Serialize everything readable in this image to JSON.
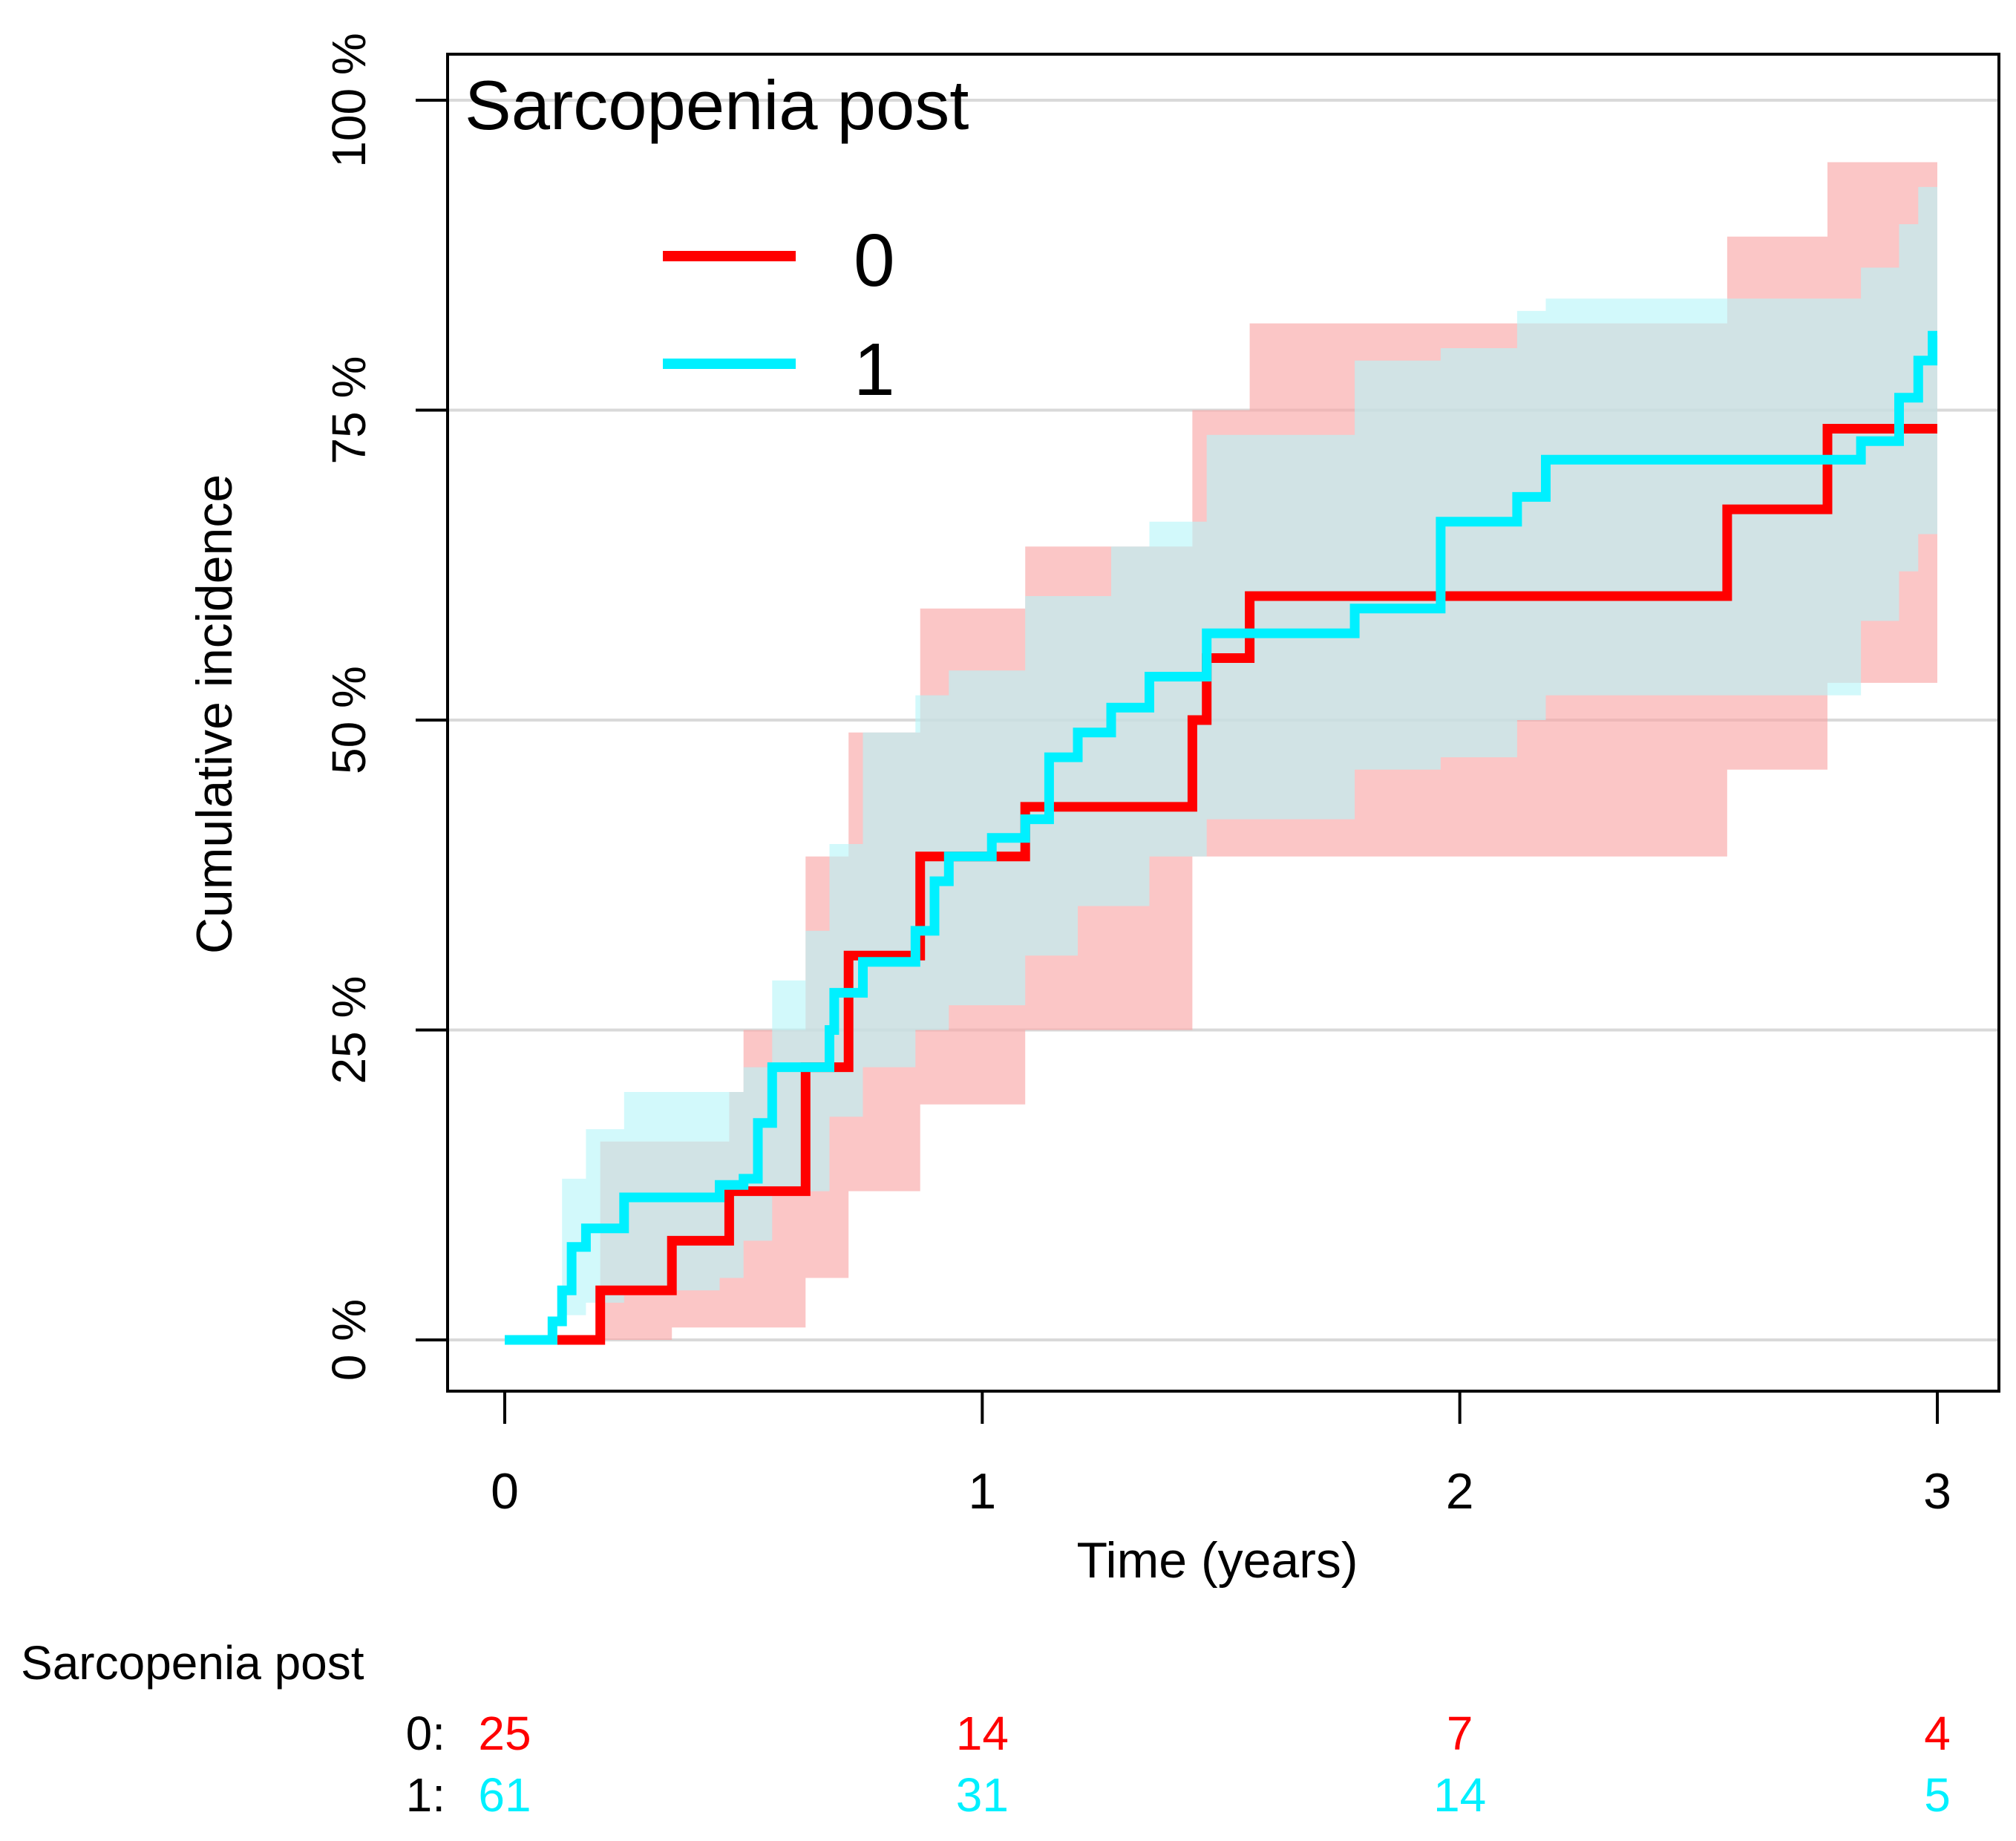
{
  "chart_data": {
    "type": "line",
    "subtype": "step",
    "title": "",
    "xlabel": "Time (years)",
    "ylabel": "Cumulative incidence",
    "xlim": [
      0,
      3
    ],
    "ylim": [
      0,
      1
    ],
    "x_ticks": [
      0,
      1,
      2,
      3
    ],
    "x_tick_labels": [
      "0",
      "1",
      "2",
      "3"
    ],
    "y_ticks": [
      0,
      0.25,
      0.5,
      0.75,
      1.0
    ],
    "y_tick_labels": [
      "0 %",
      "25 %",
      "50 %",
      "75 %",
      "100 %"
    ],
    "grid": "horizontal",
    "legend": {
      "title": "Sarcopenia post",
      "position": "top-left",
      "entries": [
        "0",
        "1"
      ]
    },
    "series": [
      {
        "name": "0",
        "color": "#ff0000",
        "band_color": "#f8a3a3",
        "steps": [
          [
            0.11,
            0.0
          ],
          [
            0.2,
            0.04
          ],
          [
            0.35,
            0.08
          ],
          [
            0.47,
            0.12
          ],
          [
            0.63,
            0.22
          ],
          [
            0.72,
            0.31
          ],
          [
            0.87,
            0.39
          ],
          [
            1.09,
            0.43
          ],
          [
            1.44,
            0.5
          ],
          [
            1.47,
            0.55
          ],
          [
            1.56,
            0.6
          ],
          [
            2.56,
            0.67
          ],
          [
            2.77,
            0.735
          ],
          [
            3.0,
            0.735
          ]
        ],
        "upper": [
          [
            0.11,
            0.0
          ],
          [
            0.2,
            0.16
          ],
          [
            0.35,
            0.16
          ],
          [
            0.47,
            0.2
          ],
          [
            0.5,
            0.25
          ],
          [
            0.63,
            0.39
          ],
          [
            0.72,
            0.49
          ],
          [
            0.87,
            0.59
          ],
          [
            1.09,
            0.64
          ],
          [
            1.44,
            0.75
          ],
          [
            1.56,
            0.82
          ],
          [
            2.56,
            0.89
          ],
          [
            2.77,
            0.95
          ],
          [
            3.0,
            0.95
          ]
        ],
        "lower": [
          [
            0.11,
            0.0
          ],
          [
            0.2,
            0.0
          ],
          [
            0.35,
            0.01
          ],
          [
            0.47,
            0.01
          ],
          [
            0.63,
            0.05
          ],
          [
            0.72,
            0.12
          ],
          [
            0.87,
            0.19
          ],
          [
            1.09,
            0.25
          ],
          [
            1.44,
            0.39
          ],
          [
            1.56,
            0.39
          ],
          [
            2.56,
            0.46
          ],
          [
            2.77,
            0.53
          ],
          [
            3.0,
            0.53
          ]
        ]
      },
      {
        "name": "1",
        "color": "#00f0ff",
        "band_color": "#b6f6f9",
        "steps": [
          [
            0.0,
            0.0
          ],
          [
            0.1,
            0.015
          ],
          [
            0.12,
            0.04
          ],
          [
            0.14,
            0.075
          ],
          [
            0.17,
            0.09
          ],
          [
            0.25,
            0.115
          ],
          [
            0.45,
            0.125
          ],
          [
            0.5,
            0.13
          ],
          [
            0.53,
            0.175
          ],
          [
            0.56,
            0.22
          ],
          [
            0.68,
            0.25
          ],
          [
            0.69,
            0.28
          ],
          [
            0.75,
            0.305
          ],
          [
            0.86,
            0.33
          ],
          [
            0.9,
            0.37
          ],
          [
            0.93,
            0.39
          ],
          [
            1.02,
            0.405
          ],
          [
            1.09,
            0.42
          ],
          [
            1.14,
            0.47
          ],
          [
            1.2,
            0.49
          ],
          [
            1.27,
            0.51
          ],
          [
            1.35,
            0.535
          ],
          [
            1.47,
            0.57
          ],
          [
            1.78,
            0.59
          ],
          [
            1.96,
            0.66
          ],
          [
            2.12,
            0.68
          ],
          [
            2.18,
            0.71
          ],
          [
            2.84,
            0.725
          ],
          [
            2.92,
            0.76
          ],
          [
            2.96,
            0.79
          ],
          [
            2.99,
            0.81
          ],
          [
            3.0,
            0.81
          ]
        ],
        "upper": [
          [
            0.1,
            0.0
          ],
          [
            0.12,
            0.13
          ],
          [
            0.17,
            0.17
          ],
          [
            0.25,
            0.2
          ],
          [
            0.45,
            0.2
          ],
          [
            0.5,
            0.22
          ],
          [
            0.56,
            0.29
          ],
          [
            0.63,
            0.33
          ],
          [
            0.68,
            0.4
          ],
          [
            0.75,
            0.49
          ],
          [
            0.86,
            0.52
          ],
          [
            0.93,
            0.54
          ],
          [
            1.09,
            0.6
          ],
          [
            1.27,
            0.64
          ],
          [
            1.35,
            0.66
          ],
          [
            1.47,
            0.73
          ],
          [
            1.78,
            0.79
          ],
          [
            1.96,
            0.8
          ],
          [
            2.12,
            0.83
          ],
          [
            2.18,
            0.84
          ],
          [
            2.84,
            0.865
          ],
          [
            2.92,
            0.9
          ],
          [
            2.96,
            0.93
          ],
          [
            3.0,
            0.93
          ]
        ],
        "lower": [
          [
            0.1,
            0.0
          ],
          [
            0.12,
            0.02
          ],
          [
            0.17,
            0.03
          ],
          [
            0.25,
            0.04
          ],
          [
            0.45,
            0.05
          ],
          [
            0.5,
            0.08
          ],
          [
            0.56,
            0.12
          ],
          [
            0.68,
            0.18
          ],
          [
            0.75,
            0.22
          ],
          [
            0.86,
            0.25
          ],
          [
            0.93,
            0.27
          ],
          [
            1.09,
            0.31
          ],
          [
            1.2,
            0.35
          ],
          [
            1.35,
            0.39
          ],
          [
            1.47,
            0.42
          ],
          [
            1.78,
            0.46
          ],
          [
            1.96,
            0.47
          ],
          [
            2.12,
            0.5
          ],
          [
            2.18,
            0.52
          ],
          [
            2.84,
            0.58
          ],
          [
            2.92,
            0.62
          ],
          [
            2.96,
            0.65
          ],
          [
            3.0,
            0.65
          ]
        ]
      }
    ],
    "risk_table": {
      "title": "Sarcopenia post",
      "times": [
        0,
        1,
        2,
        3
      ],
      "rows": [
        {
          "label": "0:",
          "color": "#ff0000",
          "counts": [
            "25",
            "14",
            "7",
            "4"
          ]
        },
        {
          "label": "1:",
          "color": "#00f0ff",
          "counts": [
            "61",
            "31",
            "14",
            "5"
          ]
        }
      ]
    }
  }
}
